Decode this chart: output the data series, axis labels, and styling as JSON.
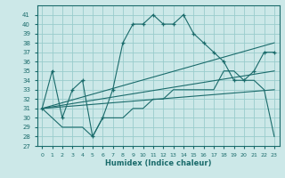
{
  "xlabel": "Humidex (Indice chaleur)",
  "bg_color": "#cce8e8",
  "grid_color": "#99cccc",
  "line_color": "#1a6b6b",
  "xlim": [
    -0.5,
    23.5
  ],
  "ylim": [
    27,
    42
  ],
  "yticks": [
    27,
    28,
    29,
    30,
    31,
    32,
    33,
    34,
    35,
    36,
    37,
    38,
    39,
    40,
    41
  ],
  "xticks": [
    0,
    1,
    2,
    3,
    4,
    5,
    6,
    7,
    8,
    9,
    10,
    11,
    12,
    13,
    14,
    15,
    16,
    17,
    18,
    19,
    20,
    21,
    22,
    23
  ],
  "series_marked": {
    "x": [
      0,
      1,
      2,
      3,
      4,
      5,
      6,
      7,
      8,
      9,
      10,
      11,
      12,
      13,
      14,
      15,
      16,
      17,
      18,
      19,
      20,
      21,
      22,
      23
    ],
    "y": [
      31,
      35,
      30,
      33,
      34,
      28,
      30,
      33,
      38,
      40,
      40,
      41,
      40,
      40,
      41,
      39,
      38,
      37,
      36,
      34,
      34,
      35,
      37,
      37
    ]
  },
  "series_lower": {
    "x": [
      0,
      1,
      2,
      3,
      4,
      5,
      6,
      7,
      8,
      9,
      10,
      11,
      12,
      13,
      14,
      15,
      16,
      17,
      18,
      19,
      20,
      21,
      22,
      23
    ],
    "y": [
      31,
      30,
      29,
      29,
      29,
      28,
      30,
      30,
      30,
      31,
      31,
      32,
      32,
      33,
      33,
      33,
      33,
      33,
      35,
      35,
      34,
      34,
      33,
      28
    ]
  },
  "trend_lines": [
    {
      "x": [
        0,
        23
      ],
      "y": [
        31,
        38
      ]
    },
    {
      "x": [
        0,
        23
      ],
      "y": [
        31,
        35
      ]
    },
    {
      "x": [
        0,
        23
      ],
      "y": [
        31,
        33
      ]
    }
  ]
}
